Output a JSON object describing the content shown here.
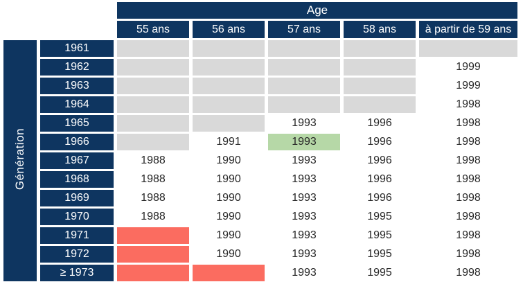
{
  "chart_data": {
    "type": "table",
    "title": "Age",
    "row_axis_label": "Génération",
    "columns": [
      "55 ans",
      "56 ans",
      "57 ans",
      "58 ans",
      "à partir de 59 ans"
    ],
    "rows": [
      {
        "generation": "1961",
        "cells": [
          {
            "text": "",
            "bg": "gray"
          },
          {
            "text": "",
            "bg": "gray"
          },
          {
            "text": "",
            "bg": "gray"
          },
          {
            "text": "",
            "bg": "gray"
          },
          {
            "text": "",
            "bg": "gray"
          }
        ]
      },
      {
        "generation": "1962",
        "cells": [
          {
            "text": "",
            "bg": "gray"
          },
          {
            "text": "",
            "bg": "gray"
          },
          {
            "text": "",
            "bg": "gray"
          },
          {
            "text": "",
            "bg": "gray"
          },
          {
            "text": "1999",
            "bg": "white"
          }
        ]
      },
      {
        "generation": "1963",
        "cells": [
          {
            "text": "",
            "bg": "gray"
          },
          {
            "text": "",
            "bg": "gray"
          },
          {
            "text": "",
            "bg": "gray"
          },
          {
            "text": "",
            "bg": "gray"
          },
          {
            "text": "1999",
            "bg": "white"
          }
        ]
      },
      {
        "generation": "1964",
        "cells": [
          {
            "text": "",
            "bg": "gray"
          },
          {
            "text": "",
            "bg": "gray"
          },
          {
            "text": "",
            "bg": "gray"
          },
          {
            "text": "",
            "bg": "gray"
          },
          {
            "text": "1998",
            "bg": "white"
          }
        ]
      },
      {
        "generation": "1965",
        "cells": [
          {
            "text": "",
            "bg": "gray"
          },
          {
            "text": "",
            "bg": "gray"
          },
          {
            "text": "1993",
            "bg": "white"
          },
          {
            "text": "1996",
            "bg": "white"
          },
          {
            "text": "1998",
            "bg": "white"
          }
        ]
      },
      {
        "generation": "1966",
        "cells": [
          {
            "text": "",
            "bg": "gray"
          },
          {
            "text": "1991",
            "bg": "white"
          },
          {
            "text": "1993",
            "bg": "green"
          },
          {
            "text": "1996",
            "bg": "white"
          },
          {
            "text": "1998",
            "bg": "white"
          }
        ]
      },
      {
        "generation": "1967",
        "cells": [
          {
            "text": "1988",
            "bg": "white"
          },
          {
            "text": "1990",
            "bg": "white"
          },
          {
            "text": "1993",
            "bg": "white"
          },
          {
            "text": "1996",
            "bg": "white"
          },
          {
            "text": "1998",
            "bg": "white"
          }
        ]
      },
      {
        "generation": "1968",
        "cells": [
          {
            "text": "1988",
            "bg": "white"
          },
          {
            "text": "1990",
            "bg": "white"
          },
          {
            "text": "1993",
            "bg": "white"
          },
          {
            "text": "1996",
            "bg": "white"
          },
          {
            "text": "1998",
            "bg": "white"
          }
        ]
      },
      {
        "generation": "1969",
        "cells": [
          {
            "text": "1988",
            "bg": "white"
          },
          {
            "text": "1990",
            "bg": "white"
          },
          {
            "text": "1993",
            "bg": "white"
          },
          {
            "text": "1996",
            "bg": "white"
          },
          {
            "text": "1998",
            "bg": "white"
          }
        ]
      },
      {
        "generation": "1970",
        "cells": [
          {
            "text": "1988",
            "bg": "white"
          },
          {
            "text": "1990",
            "bg": "white"
          },
          {
            "text": "1993",
            "bg": "white"
          },
          {
            "text": "1995",
            "bg": "white"
          },
          {
            "text": "1998",
            "bg": "white"
          }
        ]
      },
      {
        "generation": "1971",
        "cells": [
          {
            "text": "",
            "bg": "red"
          },
          {
            "text": "1990",
            "bg": "white"
          },
          {
            "text": "1993",
            "bg": "white"
          },
          {
            "text": "1995",
            "bg": "white"
          },
          {
            "text": "1998",
            "bg": "white"
          }
        ]
      },
      {
        "generation": "1972",
        "cells": [
          {
            "text": "",
            "bg": "red"
          },
          {
            "text": "1990",
            "bg": "white"
          },
          {
            "text": "1993",
            "bg": "white"
          },
          {
            "text": "1995",
            "bg": "white"
          },
          {
            "text": "1998",
            "bg": "white"
          }
        ]
      },
      {
        "generation": "≥ 1973",
        "cells": [
          {
            "text": "",
            "bg": "red"
          },
          {
            "text": "",
            "bg": "red"
          },
          {
            "text": "1993",
            "bg": "white"
          },
          {
            "text": "1995",
            "bg": "white"
          },
          {
            "text": "1998",
            "bg": "white"
          }
        ]
      }
    ]
  },
  "colors": {
    "header_navy": "#0e3560",
    "empty_gray": "#d9d9d9",
    "highlight_green": "#b6d8a7",
    "highlight_red": "#fb6c60",
    "cell_text": "#262626",
    "header_text": "#ffffff",
    "page_bg": "#ffffff"
  }
}
